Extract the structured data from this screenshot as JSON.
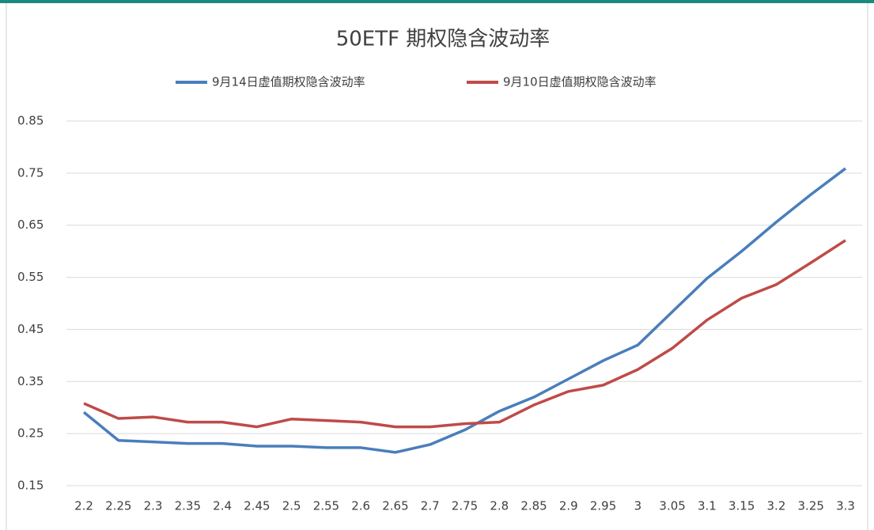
{
  "chart_data": {
    "type": "line",
    "title": "50ETF 期权隐含波动率",
    "categories": [
      "2.2",
      "2.25",
      "2.3",
      "2.35",
      "2.4",
      "2.45",
      "2.5",
      "2.55",
      "2.6",
      "2.65",
      "2.7",
      "2.75",
      "2.8",
      "2.85",
      "2.9",
      "2.95",
      "3",
      "3.05",
      "3.1",
      "3.15",
      "3.2",
      "3.25",
      "3.3"
    ],
    "series": [
      {
        "name": "9月14日虚值期权隐含波动率",
        "color": "#4a7ebb",
        "values": [
          0.291,
          0.237,
          0.234,
          0.231,
          0.231,
          0.226,
          0.226,
          0.223,
          0.223,
          0.214,
          0.229,
          0.257,
          0.293,
          0.32,
          0.355,
          0.39,
          0.42,
          0.484,
          0.548,
          0.6,
          0.656,
          0.709,
          0.759
        ]
      },
      {
        "name": "9月10日虚值期权隐含波动率",
        "color": "#be4b48",
        "values": [
          0.308,
          0.279,
          0.282,
          0.272,
          0.272,
          0.263,
          0.278,
          0.275,
          0.272,
          0.263,
          0.263,
          0.269,
          0.272,
          0.305,
          0.331,
          0.343,
          0.373,
          0.414,
          0.468,
          0.51,
          0.536,
          0.578,
          0.621
        ]
      }
    ],
    "ylim": [
      0.15,
      0.85
    ],
    "yticks": [
      0.15,
      0.25,
      0.35,
      0.45,
      0.55,
      0.65,
      0.75,
      0.85
    ],
    "grid": true,
    "legend": "top"
  }
}
